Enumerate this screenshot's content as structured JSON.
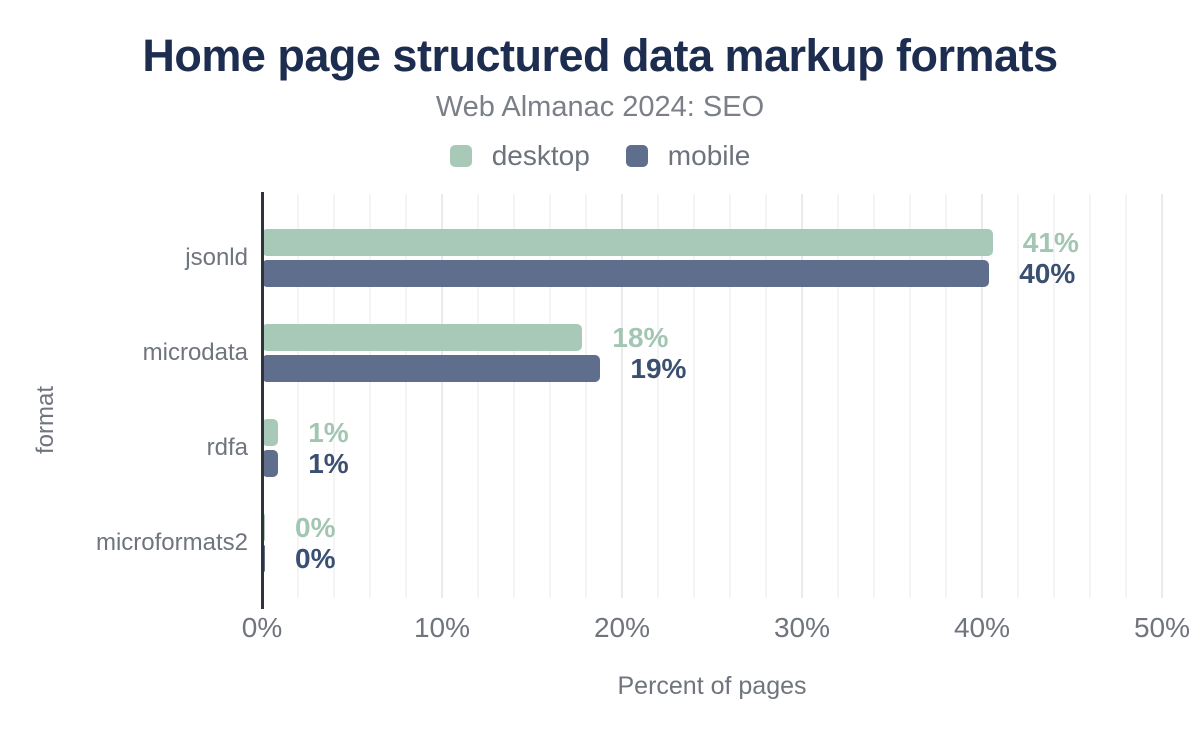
{
  "figure": {
    "title": "Home page structured data markup formats",
    "subtitle": "Web Almanac 2024: SEO"
  },
  "colors": {
    "background": "#ffffff",
    "title_text": "#1d2d50",
    "muted_text": "#6f747d",
    "axis_line": "#2f333c",
    "gridline": "#f4f4f6",
    "gridline_major": "#eaeaee",
    "desktop_bar": "#a9c9b8",
    "desktop_label": "#a2c6b3",
    "mobile_bar": "#5f6e8c",
    "mobile_label": "#3b5070"
  },
  "chart_data": {
    "type": "bar",
    "orientation": "horizontal",
    "title": "Home page structured data markup formats",
    "subtitle": "Web Almanac 2024: SEO",
    "xlabel": "Percent of pages",
    "ylabel": "format",
    "xlim": [
      0,
      50
    ],
    "xticks": [
      0,
      10,
      20,
      30,
      40,
      50
    ],
    "xtick_suffix": "%",
    "grid": true,
    "grid_step": 2,
    "legend_position": "top",
    "categories": [
      "jsonld",
      "microdata",
      "rdfa",
      "microformats2"
    ],
    "series": [
      {
        "name": "desktop",
        "color": "#a9c9b8",
        "label_color": "#a2c6b3",
        "values": [
          41,
          18,
          1,
          0
        ],
        "labels": [
          "41%",
          "18%",
          "1%",
          "0%"
        ],
        "bar_values": [
          40.6,
          17.8,
          0.9,
          0.15
        ]
      },
      {
        "name": "mobile",
        "color": "#5f6e8c",
        "label_color": "#3b5070",
        "values": [
          40,
          19,
          1,
          0
        ],
        "labels": [
          "40%",
          "19%",
          "1%",
          "0%"
        ],
        "bar_values": [
          40.4,
          18.8,
          0.9,
          0.15
        ]
      }
    ]
  }
}
